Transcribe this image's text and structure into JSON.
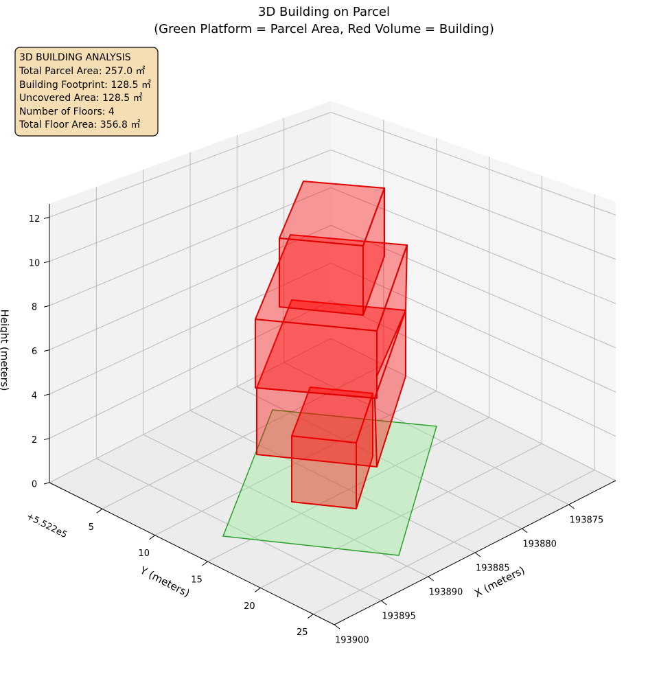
{
  "chart_data": {
    "type": "bar3d",
    "title": "3D Building on Parcel",
    "subtitle": "(Green Platform = Parcel Area, Red Volume = Building)",
    "xlabel": "X (meters)",
    "ylabel": "Y (meters)",
    "zlabel": "Height (meters)",
    "y_offset": "+5.522e5",
    "xlim": [
      193870,
      193900
    ],
    "xticks": [
      193875,
      193880,
      193885,
      193890,
      193895,
      193900
    ],
    "ylim": [
      0,
      27
    ],
    "yticks": [
      5,
      10,
      15,
      20,
      25
    ],
    "zlim": [
      0,
      12.6
    ],
    "zticks": [
      0,
      2,
      4,
      6,
      8,
      10,
      12
    ],
    "grid": true,
    "annotation": {
      "title": "3D BUILDING ANALYSIS",
      "lines": [
        "Total Parcel Area: 257.0 ㎡",
        "Building Footprint: 128.5 ㎡",
        "Uncovered Area: 128.5 ㎡",
        "Number of Floors: 4",
        "Total Floor Area: 356.8 ㎡"
      ]
    }
  }
}
